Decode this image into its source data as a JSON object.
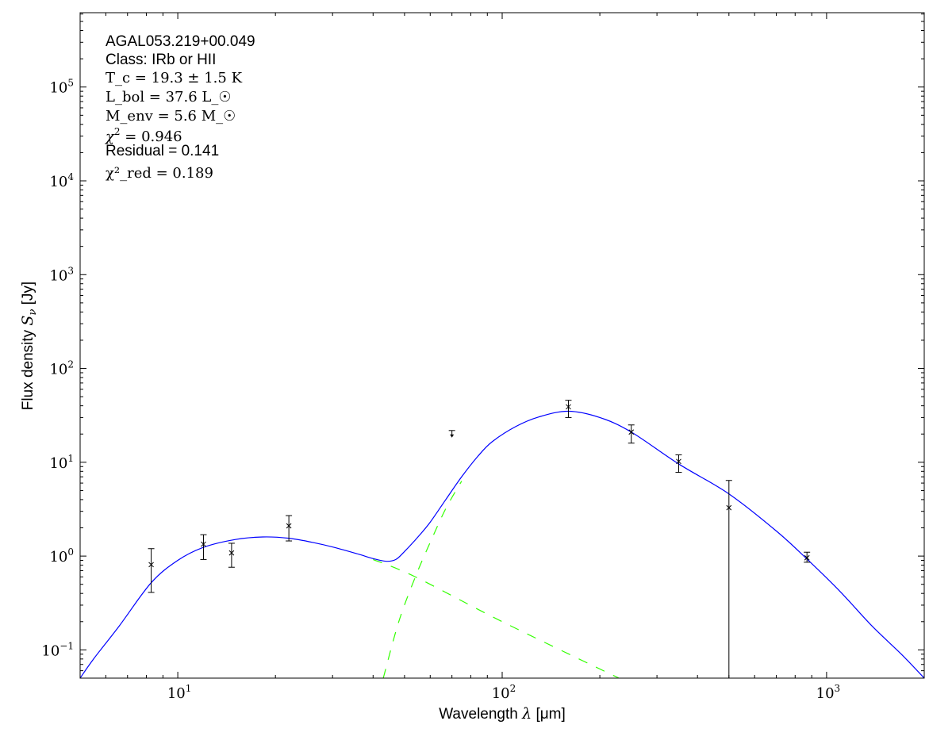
{
  "chart_data": {
    "type": "scatter",
    "xscale": "log",
    "yscale": "log",
    "xlim": [
      5,
      2000
    ],
    "ylim": [
      0.05,
      620000
    ],
    "xlabel": "Wavelength λ [μm]",
    "ylabel": "Flux density S_ν [Jy]",
    "ylabel_prefix": "Flux density ",
    "ylabel_symbol": "S",
    "ylabel_sub": "ν",
    "ylabel_unit": " [Jy]",
    "xlabel_prefix": "Wavelength ",
    "xlabel_symbol": "λ",
    "xlabel_unit": " [μm]",
    "x_ticks": [
      {
        "value": 10,
        "base": "10",
        "exp": "1"
      },
      {
        "value": 100,
        "base": "10",
        "exp": "2"
      },
      {
        "value": 1000,
        "base": "10",
        "exp": "3"
      }
    ],
    "y_ticks": [
      {
        "value": 0.1,
        "base": "10",
        "exp": "−1"
      },
      {
        "value": 1,
        "base": "10",
        "exp": "0"
      },
      {
        "value": 10,
        "base": "10",
        "exp": "1"
      },
      {
        "value": 100,
        "base": "10",
        "exp": "2"
      },
      {
        "value": 1000,
        "base": "10",
        "exp": "3"
      },
      {
        "value": 10000,
        "base": "10",
        "exp": "4"
      },
      {
        "value": 100000,
        "base": "10",
        "exp": "5"
      }
    ],
    "grid": false,
    "annotations": {
      "source": "AGAL053.219+00.049",
      "class": "Class: IRb or HII",
      "tc": "T_c = 19.3 ± 1.5 K",
      "lbol": "L_bol = 37.6 L_☉",
      "menv": "M_env = 5.6 M_☉",
      "chi2": "χ² = 0.946",
      "residual": "Residual = 0.141",
      "chi2red": "χ²_red = 0.189"
    },
    "points": [
      {
        "x": 8.28,
        "y": 0.81,
        "err_hi": 1.2,
        "err_lo": 0.41
      },
      {
        "x": 12,
        "y": 1.34,
        "err_hi": 1.69,
        "err_lo": 0.92
      },
      {
        "x": 14.65,
        "y": 1.08,
        "err_hi": 1.37,
        "err_lo": 0.76
      },
      {
        "x": 22,
        "y": 2.1,
        "err_hi": 2.7,
        "err_lo": 1.45
      },
      {
        "x": 160,
        "y": 39,
        "err_hi": 45.8,
        "err_lo": 30
      },
      {
        "x": 250,
        "y": 21,
        "err_hi": 25,
        "err_lo": 16
      },
      {
        "x": 350,
        "y": 10.2,
        "err_hi": 12,
        "err_lo": 7.8
      },
      {
        "x": 500,
        "y": 3.28,
        "err_hi": 6.4,
        "err_lo": 0.05
      },
      {
        "x": 870,
        "y": 0.96,
        "err_hi": 1.1,
        "err_lo": 0.86
      }
    ],
    "upper_limits": [
      {
        "x": 70,
        "y": 21.8
      }
    ],
    "series": [
      {
        "name": "total-model",
        "color": "#0000ff",
        "style": "solid",
        "x": [
          5,
          5.5,
          6.6,
          8.28,
          10,
          12,
          15,
          18.3,
          22,
          26,
          30.3,
          36,
          40,
          44,
          47,
          50,
          55,
          60,
          67,
          75,
          84,
          93,
          110,
          130,
          160,
          200,
          250,
          350,
          500,
          700,
          870,
          1100,
          1380,
          1700,
          2000
        ],
        "y": [
          0.05,
          0.08,
          0.18,
          0.52,
          0.9,
          1.24,
          1.5,
          1.6,
          1.55,
          1.4,
          1.24,
          1.05,
          0.94,
          0.88,
          0.92,
          1.12,
          1.6,
          2.3,
          4.0,
          7.0,
          11.5,
          16.5,
          24,
          30.5,
          35,
          30,
          21,
          9.6,
          4.6,
          1.85,
          0.93,
          0.42,
          0.18,
          0.09,
          0.05
        ]
      },
      {
        "name": "warm-component",
        "color": "#33ff00",
        "style": "dashed",
        "x": [
          40,
          54,
          100,
          229
        ],
        "y": [
          0.92,
          0.6,
          0.2,
          0.05
        ]
      },
      {
        "name": "cold-component",
        "color": "#33ff00",
        "style": "dashed",
        "x": [
          43,
          48,
          54,
          60,
          67,
          75
        ],
        "y": [
          0.05,
          0.2,
          0.6,
          1.4,
          3.2,
          6.3
        ]
      }
    ]
  }
}
